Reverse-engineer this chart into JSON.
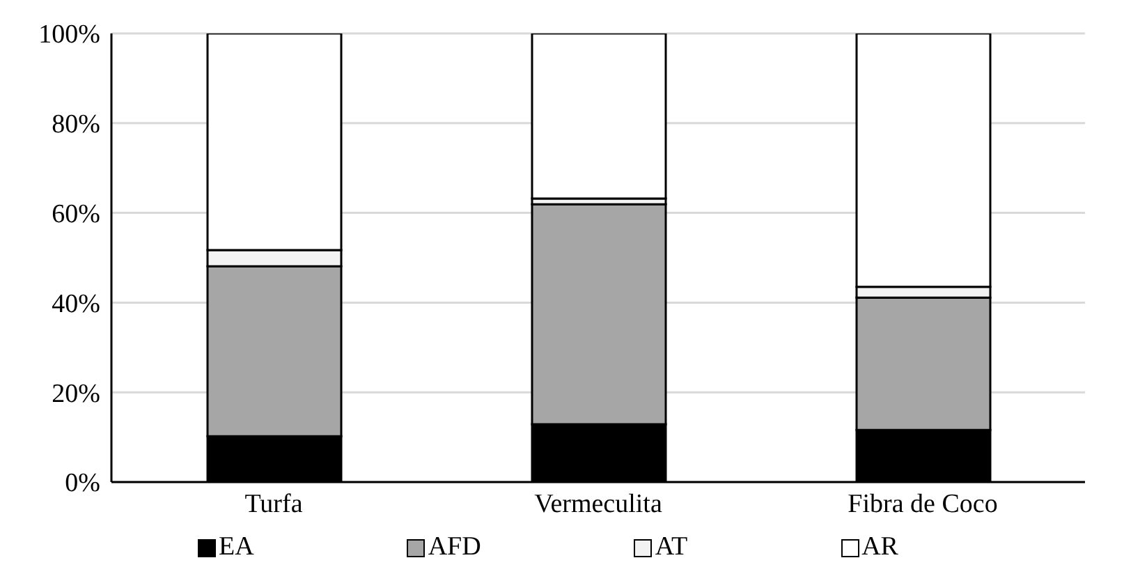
{
  "chart_data": {
    "type": "bar",
    "stacked": true,
    "categories": [
      "Turfa",
      "Vermeculita",
      "Fibra de Coco"
    ],
    "series": [
      {
        "name": "EA",
        "color": "#000000",
        "values": [
          10.2,
          12.9,
          11.6
        ]
      },
      {
        "name": "AFD",
        "color": "#a6a6a6",
        "values": [
          37.9,
          49,
          29.5
        ]
      },
      {
        "name": "AT",
        "color": "#f2f2f2",
        "values": [
          3.6,
          1.3,
          2.4
        ]
      },
      {
        "name": "AR",
        "color": "#ffffff",
        "values": [
          48.3,
          36.8,
          56.5
        ]
      }
    ],
    "ylim": [
      0,
      100
    ],
    "yticks": [
      {
        "value": 0,
        "label": "0%"
      },
      {
        "value": 20,
        "label": "20%"
      },
      {
        "value": 40,
        "label": "40%"
      },
      {
        "value": 60,
        "label": "60%"
      },
      {
        "value": 80,
        "label": "80%"
      },
      {
        "value": 100,
        "label": "100%"
      }
    ],
    "grid": "y",
    "legend": "bottom"
  }
}
